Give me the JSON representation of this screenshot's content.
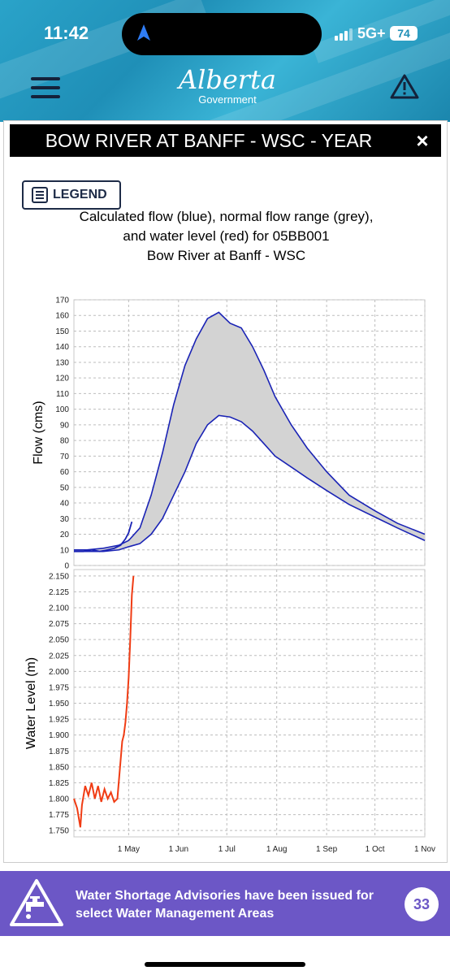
{
  "status": {
    "time": "11:42",
    "network": "5G+",
    "battery": "74"
  },
  "header": {
    "brand_name": "Alberta",
    "brand_sub": "Government"
  },
  "modal": {
    "title": "BOW RIVER AT BANFF - WSC - YEAR",
    "close_label": "×",
    "legend_button": "LEGEND"
  },
  "chart_data": [
    {
      "type": "area",
      "title": "Calculated flow (blue), normal flow range (grey),",
      "title_line2": "and water level (red) for 05BB001",
      "title_line3": "Bow River at Banff - WSC",
      "ylabel": "Flow (cms)",
      "ylim": [
        0,
        170
      ],
      "yticks": [
        0,
        10,
        20,
        30,
        40,
        50,
        60,
        70,
        80,
        90,
        100,
        110,
        120,
        130,
        140,
        150,
        160,
        170
      ],
      "xlim": [
        "2024-03-28",
        "2024-11-01"
      ],
      "grid": true,
      "normal_range": {
        "x": [
          "2024-03-28",
          "2024-04-05",
          "2024-04-15",
          "2024-04-25",
          "2024-05-01",
          "2024-05-08",
          "2024-05-15",
          "2024-05-22",
          "2024-05-29",
          "2024-06-05",
          "2024-06-12",
          "2024-06-19",
          "2024-06-26",
          "2024-07-03",
          "2024-07-10",
          "2024-07-17",
          "2024-07-24",
          "2024-07-31",
          "2024-08-10",
          "2024-08-20",
          "2024-09-01",
          "2024-09-15",
          "2024-10-01",
          "2024-10-15",
          "2024-11-01"
        ],
        "upper": [
          10,
          10,
          11,
          13,
          16,
          24,
          45,
          72,
          103,
          128,
          145,
          158,
          162,
          155,
          152,
          140,
          125,
          108,
          90,
          75,
          60,
          45,
          35,
          27,
          20
        ],
        "lower": [
          9,
          9,
          9,
          10,
          12,
          14,
          20,
          30,
          45,
          60,
          78,
          90,
          96,
          95,
          92,
          86,
          78,
          70,
          63,
          56,
          48,
          39,
          31,
          24,
          16
        ]
      },
      "flow_series": {
        "name": "Calculated flow",
        "color": "#1a23b5",
        "x": [
          "2024-03-28",
          "2024-04-03",
          "2024-04-08",
          "2024-04-13",
          "2024-04-18",
          "2024-04-22",
          "2024-04-26",
          "2024-04-29",
          "2024-05-01",
          "2024-05-03"
        ],
        "values": [
          9,
          9,
          10,
          9,
          10,
          11,
          13,
          17,
          21,
          28
        ]
      }
    },
    {
      "type": "line",
      "ylabel": "Water Level (m)",
      "ylim": [
        1.74,
        2.16
      ],
      "yticks": [
        "1.750",
        "1.775",
        "1.800",
        "1.825",
        "1.850",
        "1.875",
        "1.900",
        "1.925",
        "1.950",
        "1.975",
        "2.000",
        "2.025",
        "2.050",
        "2.075",
        "2.100",
        "2.125",
        "2.150"
      ],
      "xlim": [
        "2024-03-28",
        "2024-11-01"
      ],
      "xticks": [
        "1 May",
        "1 Jun",
        "1 Jul",
        "1 Aug",
        "1 Sep",
        "1 Oct",
        "1 Nov"
      ],
      "grid": true,
      "series": [
        {
          "color": "#f03c14",
          "x": [
            "2024-03-28",
            "2024-03-30",
            "2024-04-01",
            "2024-04-02",
            "2024-04-04",
            "2024-04-06",
            "2024-04-08",
            "2024-04-10",
            "2024-04-12",
            "2024-04-14",
            "2024-04-16",
            "2024-04-18",
            "2024-04-20",
            "2024-04-22",
            "2024-04-24",
            "2024-04-26",
            "2024-04-27",
            "2024-04-28",
            "2024-04-29",
            "2024-04-30",
            "2024-05-01",
            "2024-05-02",
            "2024-05-03",
            "2024-05-04"
          ],
          "values": [
            1.8,
            1.785,
            1.755,
            1.79,
            1.82,
            1.805,
            1.825,
            1.8,
            1.82,
            1.795,
            1.815,
            1.8,
            1.81,
            1.795,
            1.8,
            1.86,
            1.89,
            1.9,
            1.92,
            1.95,
            1.99,
            2.05,
            2.12,
            2.15
          ]
        }
      ]
    }
  ],
  "advisory": {
    "text": "Water Shortage Advisories have been issued for select Water Management Areas",
    "count": "33"
  }
}
